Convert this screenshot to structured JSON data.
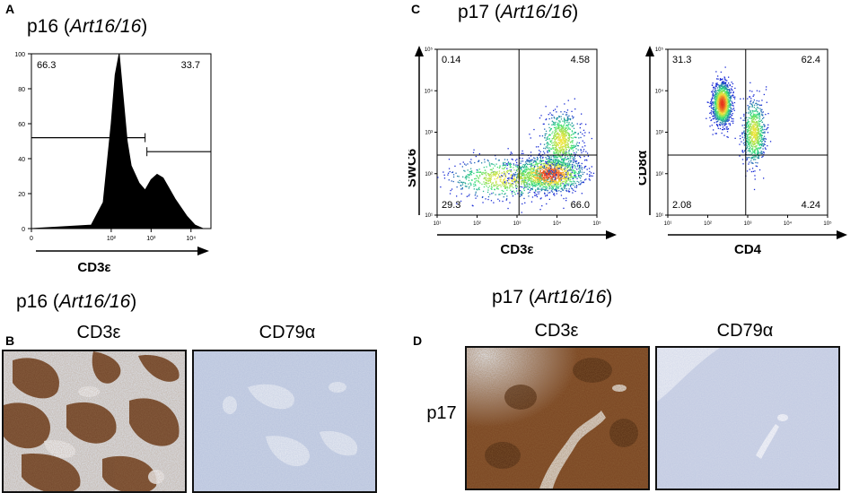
{
  "panels": {
    "a": {
      "letter": "A",
      "title_prefix": "p16 (",
      "title_italic": "Art16/16",
      "title_suffix": ")"
    },
    "b": {
      "letter": "B",
      "title_prefix": "p16 (",
      "title_italic": "Art16/16",
      "title_suffix": ")",
      "stain_left": "CD3ε",
      "stain_right": "CD79α"
    },
    "c": {
      "letter": "C",
      "title_prefix": "p17 (",
      "title_italic": "Art16/16",
      "title_suffix": ")"
    },
    "d": {
      "letter": "D",
      "title_prefix": "p17 (",
      "title_italic": "Art16/16",
      "title_suffix": ")",
      "row_label": "p17",
      "stain_left": "CD3ε",
      "stain_right": "CD79α"
    }
  },
  "colors": {
    "histogram_fill": "#000000",
    "ihc_brown": "#6b3a1a",
    "ihc_blue_bg": "#c9d3e6",
    "density_low": "#1a2bd6",
    "density_mid": "#2ee07a",
    "density_high": "#e8311c"
  },
  "chart_data": [
    {
      "type": "area",
      "chart": "histogram",
      "xlabel": "CD3ε",
      "x_ticks": [
        "0",
        "10²",
        "10³",
        "10⁴"
      ],
      "y_ticks": [
        "0",
        "20",
        "40",
        "60",
        "80",
        "100"
      ],
      "ylim": [
        0,
        100
      ],
      "x": [
        0.0,
        1.5,
        1.8,
        2.0,
        2.1,
        2.2,
        2.3,
        2.4,
        2.5,
        2.7,
        2.85,
        3.0,
        3.15,
        3.3,
        3.45,
        3.6,
        3.75,
        3.9,
        4.1,
        4.3
      ],
      "y": [
        0,
        2,
        15,
        60,
        88,
        100,
        75,
        50,
        36,
        26,
        22,
        28,
        31,
        29,
        23,
        17,
        12,
        7,
        2,
        0
      ],
      "gates": [
        {
          "label": "66.3",
          "value": 66.3
        },
        {
          "label": "33.7",
          "value": 33.7
        }
      ]
    },
    {
      "type": "scatter",
      "chart": "flow-dot-plot",
      "xlabel": "CD3ε",
      "ylabel": "SWC6",
      "scale": "log",
      "x_ticks": [
        "10¹",
        "10²",
        "10³",
        "10⁴",
        "10⁵"
      ],
      "y_ticks": [
        "10¹",
        "10²",
        "10³",
        "10⁴",
        "10⁵"
      ],
      "xlim": [
        1,
        5
      ],
      "ylim": [
        1,
        5
      ],
      "quadrants": {
        "top_left": "0.14",
        "top_right": "4.58",
        "bottom_left": "29.3",
        "bottom_right": "66.0"
      },
      "populations": [
        {
          "center": [
            3.8,
            2.0
          ],
          "spread": [
            0.45,
            0.22
          ]
        },
        {
          "center": [
            2.7,
            1.9
          ],
          "spread": [
            0.7,
            0.25
          ]
        },
        {
          "center": [
            4.1,
            2.8
          ],
          "spread": [
            0.25,
            0.35
          ]
        }
      ]
    },
    {
      "type": "scatter",
      "chart": "flow-dot-plot",
      "xlabel": "CD4",
      "ylabel": "CD8α",
      "scale": "log",
      "x_ticks": [
        "10¹",
        "10²",
        "10³",
        "10⁴",
        "10⁵"
      ],
      "y_ticks": [
        "10¹",
        "10²",
        "10³",
        "10⁴",
        "10⁵"
      ],
      "xlim": [
        1,
        5
      ],
      "ylim": [
        1,
        5
      ],
      "quadrants": {
        "top_left": "31.3",
        "top_right": "62.4",
        "bottom_left": "2.08",
        "bottom_right": "4.24"
      },
      "populations": [
        {
          "center": [
            2.35,
            3.7
          ],
          "spread": [
            0.12,
            0.25
          ]
        },
        {
          "center": [
            3.15,
            3.0
          ],
          "spread": [
            0.14,
            0.4
          ]
        }
      ]
    }
  ]
}
